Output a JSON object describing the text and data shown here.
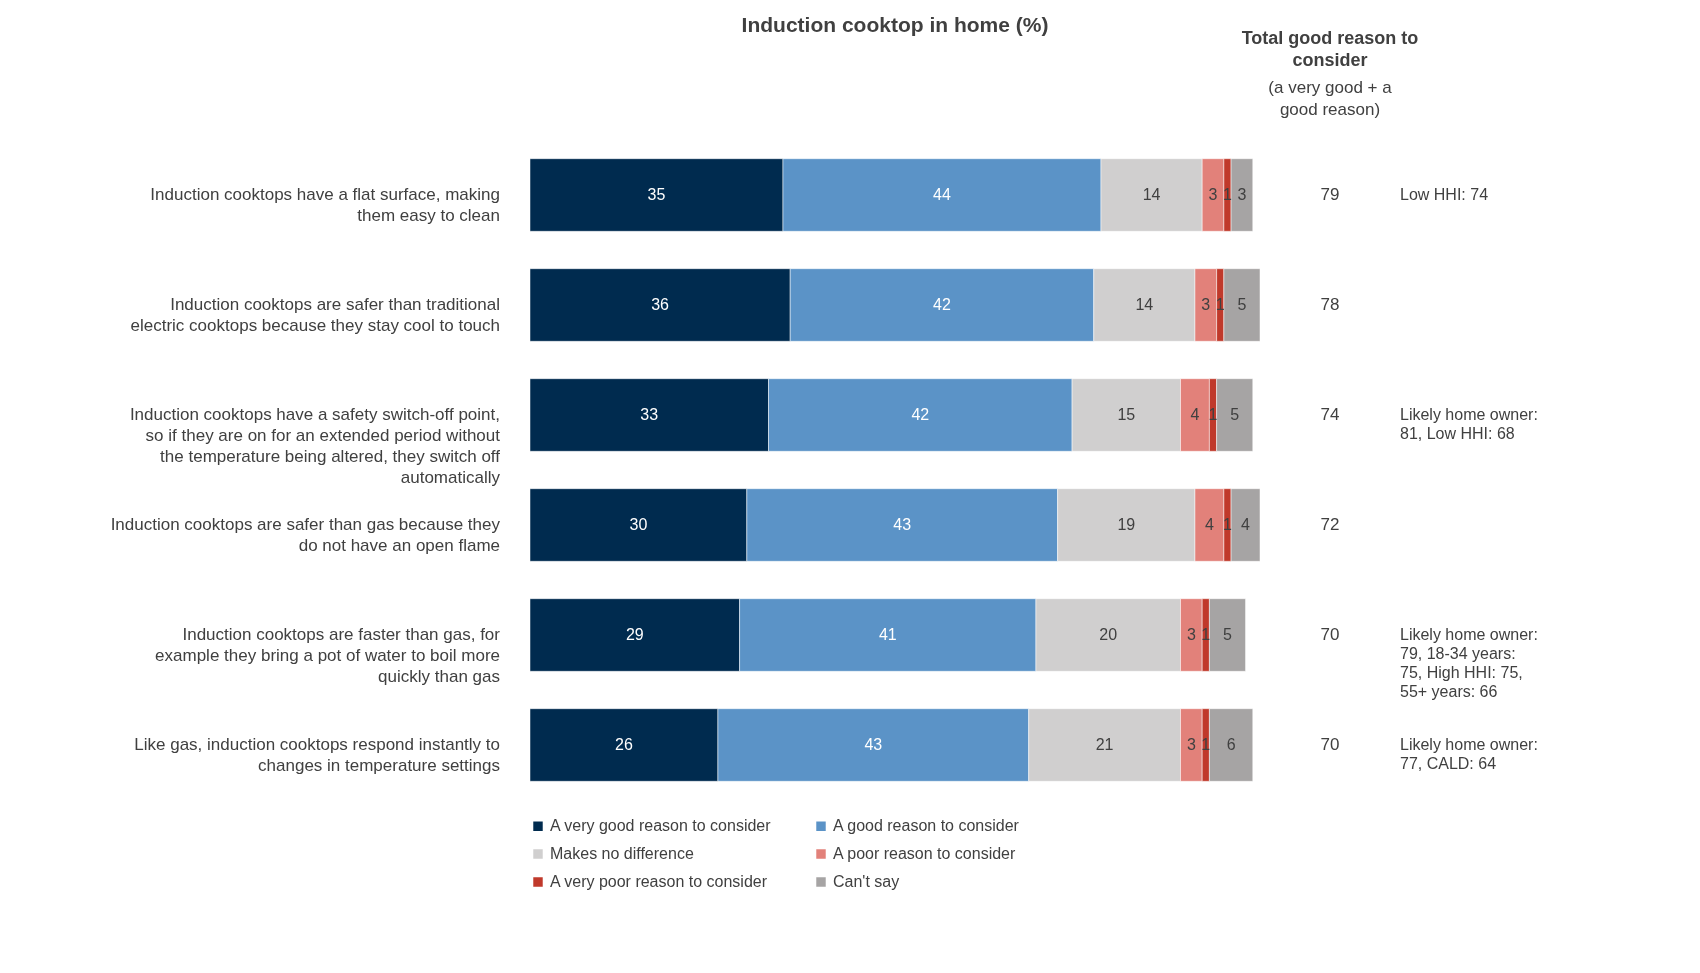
{
  "chart_data": [
    {
      "type": "bar",
      "orientation": "horizontal",
      "stacked": true,
      "data_labels": true,
      "legend": "bottom",
      "title": "Induction cooktop in home (%)",
      "categories": [
        "Induction cooktops have a flat surface, making them easy to clean",
        "Induction cooktops are safer than traditional electric cooktops because they stay cool to touch",
        "Induction cooktops have a safety switch-off point, so if they are on for an extended period without the temperature being altered, they switch off automatically",
        "Induction cooktops are safer than gas because they do not have an open flame",
        "Induction cooktops are faster than gas, for example they bring a pot of water to boil more quickly than gas",
        "Like gas, induction cooktops respond instantly to changes in temperature settings"
      ],
      "series": [
        {
          "name": "A very good reason to consider",
          "color": "#002b4f",
          "values": [
            35,
            36,
            33,
            30,
            29,
            26
          ]
        },
        {
          "name": "A good reason to consider",
          "color": "#5b93c7",
          "values": [
            44,
            42,
            42,
            43,
            41,
            43
          ]
        },
        {
          "name": "Makes no difference",
          "color": "#d0cfcf",
          "values": [
            14,
            14,
            15,
            19,
            20,
            21
          ]
        },
        {
          "name": "A poor reason to consider",
          "color": "#e2817a",
          "values": [
            3,
            3,
            4,
            4,
            3,
            3
          ]
        },
        {
          "name": "A very poor reason to consider",
          "color": "#c0392b",
          "values": [
            1,
            1,
            1,
            1,
            1,
            1
          ]
        },
        {
          "name": "Can't say",
          "color": "#a6a4a4",
          "values": [
            3,
            5,
            5,
            4,
            5,
            6
          ]
        }
      ]
    },
    {
      "type": "other",
      "title": "Total good reason to consider",
      "subtitle": "(a very good + a good reason)",
      "data_labels": true,
      "values": [
        79,
        78,
        74,
        72,
        70,
        70
      ],
      "annotations": [
        "Low HHI: 74",
        "Likely home owner: 81, Low HHI: 68",
        "Likely home owner: 79, 18-34 years: 75, High HHI: 75, 55+ years: 66",
        "Likely home owner: 77, CALD: 64"
      ]
    }
  ]
}
